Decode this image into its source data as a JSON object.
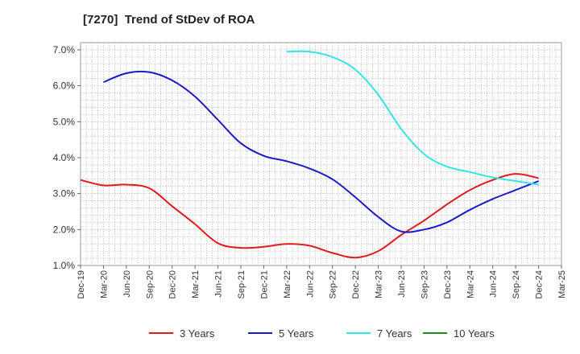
{
  "chart_data": {
    "type": "line",
    "title": "[7270]  Trend of StDev of ROA",
    "xlabel": "",
    "ylabel": "",
    "x_tick_labels": [
      "Dec-19",
      "Mar-20",
      "Jun-20",
      "Sep-20",
      "Dec-20",
      "Mar-21",
      "Jun-21",
      "Sep-21",
      "Dec-21",
      "Mar-22",
      "Jun-22",
      "Sep-22",
      "Dec-22",
      "Mar-23",
      "Jun-23",
      "Sep-23",
      "Dec-23",
      "Mar-24",
      "Jun-24",
      "Sep-24",
      "Dec-24",
      "Mar-25"
    ],
    "y_tick_labels": [
      "1.0%",
      "2.0%",
      "3.0%",
      "4.0%",
      "5.0%",
      "6.0%",
      "7.0%"
    ],
    "ylim": [
      1.0,
      7.2
    ],
    "grid": true,
    "legend_position": "bottom",
    "series": [
      {
        "name": "3 Years",
        "color": "#e31a1c",
        "values": [
          3.38,
          3.23,
          3.25,
          3.15,
          2.65,
          2.15,
          1.62,
          1.49,
          1.52,
          1.6,
          1.55,
          1.35,
          1.22,
          1.4,
          1.85,
          2.25,
          2.7,
          3.1,
          3.38,
          3.55,
          3.43,
          null
        ]
      },
      {
        "name": "5 Years",
        "color": "#1a1acb",
        "values": [
          null,
          6.1,
          6.35,
          6.38,
          6.15,
          5.7,
          5.05,
          4.4,
          4.05,
          3.9,
          3.7,
          3.4,
          2.9,
          2.35,
          1.95,
          2.0,
          2.2,
          2.55,
          2.85,
          3.1,
          3.35,
          null
        ]
      },
      {
        "name": "7 Years",
        "color": "#33e6e6",
        "values": [
          null,
          null,
          null,
          null,
          null,
          null,
          null,
          null,
          null,
          6.95,
          6.95,
          6.8,
          6.45,
          5.75,
          4.8,
          4.1,
          3.75,
          3.6,
          3.45,
          3.35,
          3.25,
          null
        ]
      },
      {
        "name": "10 Years",
        "color": "#1a8a1a",
        "values": [
          null,
          null,
          null,
          null,
          null,
          null,
          null,
          null,
          null,
          null,
          null,
          null,
          null,
          null,
          null,
          null,
          null,
          null,
          null,
          null,
          null,
          null
        ]
      }
    ]
  }
}
